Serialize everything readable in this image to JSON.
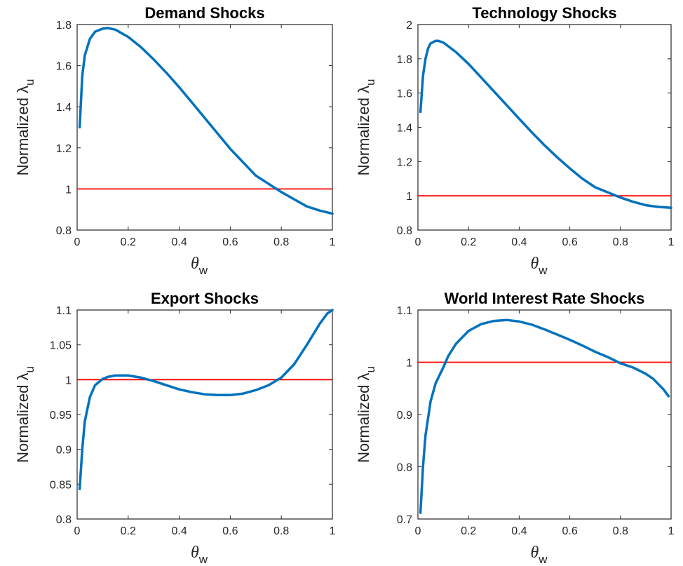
{
  "figure": {
    "axis_label_template": {
      "ylabel_main": "Normalized λ",
      "ylabel_sub": "u",
      "xlabel_main": "θ",
      "xlabel_sub": "w"
    }
  },
  "colors": {
    "curve": "#0072BD",
    "reference_line": "#FF0000",
    "axes": "#262626"
  },
  "chart_data": [
    {
      "type": "line",
      "title": "Demand Shocks",
      "xlabel": "θw",
      "ylabel": "Normalized λu",
      "xlim": [
        0,
        1
      ],
      "ylim": [
        0.8,
        1.8
      ],
      "xticks": [
        0,
        0.2,
        0.4,
        0.6,
        0.8,
        1
      ],
      "xtick_labels": [
        "0",
        "0.2",
        "0.4",
        "0.6",
        "0.8",
        "1"
      ],
      "yticks": [
        0.8,
        1.0,
        1.2,
        1.4,
        1.6,
        1.8
      ],
      "ytick_labels": [
        "0.8",
        "1",
        "1.2",
        "1.4",
        "1.6",
        "1.8"
      ],
      "reference_y": 1,
      "grid": false,
      "series": [
        {
          "x": [
            0.01,
            0.02,
            0.03,
            0.05,
            0.07,
            0.1,
            0.12,
            0.15,
            0.2,
            0.25,
            0.3,
            0.35,
            0.4,
            0.45,
            0.5,
            0.55,
            0.6,
            0.65,
            0.7,
            0.75,
            0.8,
            0.85,
            0.9,
            0.95,
            1.0
          ],
          "y": [
            1.3,
            1.55,
            1.65,
            1.73,
            1.765,
            1.78,
            1.783,
            1.775,
            1.74,
            1.69,
            1.63,
            1.565,
            1.495,
            1.42,
            1.345,
            1.27,
            1.195,
            1.13,
            1.065,
            1.025,
            0.985,
            0.95,
            0.915,
            0.895,
            0.88
          ]
        }
      ]
    },
    {
      "type": "line",
      "title": "Technology Shocks",
      "xlabel": "θw",
      "ylabel": "Normalized λu",
      "xlim": [
        0,
        1
      ],
      "ylim": [
        0.8,
        2.0
      ],
      "xticks": [
        0,
        0.2,
        0.4,
        0.6,
        0.8,
        1
      ],
      "xtick_labels": [
        "0",
        "0.2",
        "0.4",
        "0.6",
        "0.8",
        "1"
      ],
      "yticks": [
        0.8,
        1.0,
        1.2,
        1.4,
        1.6,
        1.8,
        2.0
      ],
      "ytick_labels": [
        "0.8",
        "1",
        "1.2",
        "1.4",
        "1.6",
        "1.8",
        "2"
      ],
      "reference_y": 1,
      "grid": false,
      "series": [
        {
          "x": [
            0.01,
            0.02,
            0.03,
            0.04,
            0.05,
            0.07,
            0.08,
            0.1,
            0.15,
            0.2,
            0.25,
            0.3,
            0.35,
            0.4,
            0.45,
            0.5,
            0.55,
            0.6,
            0.65,
            0.7,
            0.75,
            0.8,
            0.85,
            0.9,
            0.95,
            1.0
          ],
          "y": [
            1.49,
            1.7,
            1.8,
            1.86,
            1.89,
            1.905,
            1.905,
            1.895,
            1.84,
            1.77,
            1.69,
            1.61,
            1.53,
            1.45,
            1.37,
            1.295,
            1.225,
            1.16,
            1.1,
            1.05,
            1.02,
            0.99,
            0.965,
            0.945,
            0.935,
            0.93
          ]
        }
      ]
    },
    {
      "type": "line",
      "title": "Export Shocks",
      "xlabel": "θw",
      "ylabel": "Normalized λu",
      "xlim": [
        0,
        1
      ],
      "ylim": [
        0.8,
        1.1
      ],
      "xticks": [
        0,
        0.2,
        0.4,
        0.6,
        0.8,
        1
      ],
      "xtick_labels": [
        "0",
        "0.2",
        "0.4",
        "0.6",
        "0.8",
        "1"
      ],
      "yticks": [
        0.8,
        0.85,
        0.9,
        0.95,
        1.0,
        1.05,
        1.1
      ],
      "ytick_labels": [
        "0.8",
        "0.85",
        "0.9",
        "0.95",
        "1",
        "1.05",
        "1.1"
      ],
      "reference_y": 1,
      "grid": false,
      "series": [
        {
          "x": [
            0.01,
            0.02,
            0.03,
            0.05,
            0.07,
            0.1,
            0.12,
            0.15,
            0.2,
            0.25,
            0.3,
            0.35,
            0.4,
            0.45,
            0.5,
            0.55,
            0.6,
            0.65,
            0.7,
            0.75,
            0.8,
            0.85,
            0.9,
            0.95,
            0.98,
            1.0
          ],
          "y": [
            0.843,
            0.9,
            0.94,
            0.975,
            0.992,
            1.001,
            1.004,
            1.006,
            1.006,
            1.003,
            0.998,
            0.992,
            0.986,
            0.982,
            0.979,
            0.978,
            0.978,
            0.98,
            0.985,
            0.992,
            1.003,
            1.022,
            1.05,
            1.08,
            1.095,
            1.1
          ]
        }
      ]
    },
    {
      "type": "line",
      "title": "World Interest Rate Shocks",
      "xlabel": "θw",
      "ylabel": "Normalized λu",
      "xlim": [
        0,
        1
      ],
      "ylim": [
        0.7,
        1.1
      ],
      "xticks": [
        0,
        0.2,
        0.4,
        0.6,
        0.8,
        1
      ],
      "xtick_labels": [
        "0",
        "0.2",
        "0.4",
        "0.6",
        "0.8",
        "1"
      ],
      "yticks": [
        0.7,
        0.8,
        0.9,
        1.0,
        1.1
      ],
      "ytick_labels": [
        "0.7",
        "0.8",
        "0.9",
        "1",
        "1.1"
      ],
      "reference_y": 1,
      "grid": false,
      "series": [
        {
          "x": [
            0.01,
            0.02,
            0.03,
            0.05,
            0.07,
            0.1,
            0.12,
            0.15,
            0.2,
            0.25,
            0.3,
            0.35,
            0.4,
            0.45,
            0.5,
            0.55,
            0.6,
            0.65,
            0.7,
            0.75,
            0.8,
            0.85,
            0.9,
            0.93,
            0.95,
            0.97,
            0.99
          ],
          "y": [
            0.712,
            0.8,
            0.86,
            0.925,
            0.96,
            0.99,
            1.012,
            1.035,
            1.06,
            1.073,
            1.079,
            1.081,
            1.078,
            1.072,
            1.063,
            1.053,
            1.043,
            1.032,
            1.02,
            1.01,
            0.998,
            0.99,
            0.978,
            0.968,
            0.958,
            0.948,
            0.935
          ]
        }
      ]
    }
  ]
}
